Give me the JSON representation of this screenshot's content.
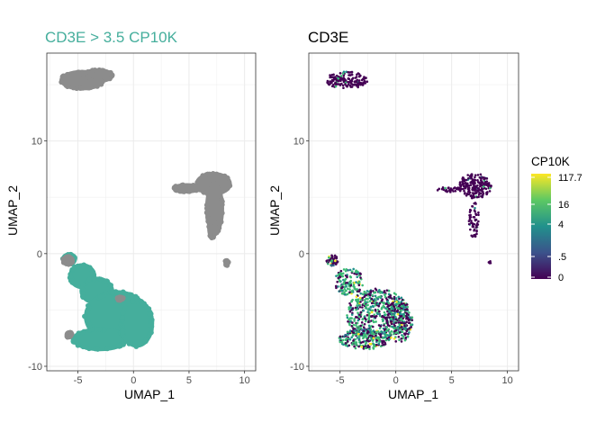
{
  "chart_data": [
    {
      "type": "scatter",
      "title": "CD3E > 3.5 CP10K",
      "title_color": "#45AE9C",
      "xlabel": "UMAP_1",
      "ylabel": "UMAP_2",
      "xlim": [
        -7.8,
        11.0
      ],
      "ylim": [
        -10.4,
        17.8
      ],
      "x_ticks": [
        -5,
        0,
        5,
        10
      ],
      "y_ticks": [
        -10,
        0,
        10
      ],
      "grid": true,
      "legend": "none",
      "series": [
        {
          "color": "#8C8C8C",
          "clusters": [
            {
              "shape": "ellipse",
              "cx": -4.6,
              "cy": 15.4,
              "rx": 1.9,
              "ry": 0.75
            },
            {
              "shape": "ellipse",
              "cx": -3.2,
              "cy": 15.8,
              "rx": 1.3,
              "ry": 0.5
            },
            {
              "shape": "ellipse",
              "cx": 7.2,
              "cy": 6.2,
              "rx": 1.5,
              "ry": 0.9
            },
            {
              "shape": "ellipse",
              "cx": 4.8,
              "cy": 5.8,
              "rx": 1.2,
              "ry": 0.3
            },
            {
              "shape": "ellipse",
              "cx": 7.3,
              "cy": 4.0,
              "rx": 0.7,
              "ry": 2.2
            },
            {
              "shape": "ellipse",
              "cx": 7.1,
              "cy": 2.2,
              "rx": 0.3,
              "ry": 0.8
            },
            {
              "shape": "ellipse",
              "cx": 8.4,
              "cy": -0.8,
              "rx": 0.15,
              "ry": 0.25
            }
          ]
        },
        {
          "color": "#45AE9C",
          "clusters": [
            {
              "shape": "ellipse",
              "cx": -5.8,
              "cy": -0.5,
              "rx": 0.55,
              "ry": 0.45
            },
            {
              "shape": "ellipse",
              "cx": -4.6,
              "cy": -2.0,
              "rx": 1.1,
              "ry": 1.0
            },
            {
              "shape": "ellipse",
              "cx": -3.3,
              "cy": -3.3,
              "rx": 1.4,
              "ry": 1.1
            },
            {
              "shape": "ellipse",
              "cx": -1.5,
              "cy": -5.6,
              "rx": 2.8,
              "ry": 2.2
            },
            {
              "shape": "ellipse",
              "cx": -3.0,
              "cy": -7.6,
              "rx": 2.4,
              "ry": 0.9
            },
            {
              "shape": "ellipse",
              "cx": 0.3,
              "cy": -6.2,
              "rx": 1.4,
              "ry": 2.0
            }
          ]
        },
        {
          "color": "#8C8C8C",
          "clusters": [
            {
              "shape": "ellipse",
              "cx": -5.9,
              "cy": -0.6,
              "rx": 0.45,
              "ry": 0.35
            },
            {
              "shape": "ellipse",
              "cx": -5.8,
              "cy": -7.2,
              "rx": 0.25,
              "ry": 0.25
            },
            {
              "shape": "ellipse",
              "cx": -1.2,
              "cy": -4.0,
              "rx": 0.3,
              "ry": 0.15
            }
          ]
        }
      ]
    },
    {
      "type": "scatter",
      "title": "CD3E",
      "title_color": "#000000",
      "xlabel": "UMAP_1",
      "ylabel": "UMAP_2",
      "xlim": [
        -7.8,
        11.0
      ],
      "ylim": [
        -10.4,
        17.8
      ],
      "x_ticks": [
        -5,
        0,
        5,
        10
      ],
      "y_ticks": [
        -10,
        0,
        10
      ],
      "grid": true,
      "legend": "right",
      "color_scale": {
        "title": "CP10K",
        "labels": [
          "117.7",
          "16",
          "4",
          ".5",
          "0"
        ],
        "colors": [
          "#FDE725",
          "#3BBB75",
          "#21918C",
          "#31688E",
          "#440154"
        ]
      },
      "clusters": [
        {
          "shape": "ellipse",
          "cx": -4.4,
          "cy": 15.4,
          "rx": 1.9,
          "ry": 0.75,
          "n": 160,
          "mix": [
            0.94,
            0.06,
            0.0
          ]
        },
        {
          "shape": "ellipse",
          "cx": 7.1,
          "cy": 6.0,
          "rx": 1.5,
          "ry": 1.1,
          "n": 200,
          "mix": [
            0.95,
            0.05,
            0.0
          ]
        },
        {
          "shape": "ellipse",
          "cx": 4.8,
          "cy": 5.7,
          "rx": 1.1,
          "ry": 0.25,
          "n": 30,
          "mix": [
            0.92,
            0.08,
            0.0
          ]
        },
        {
          "shape": "ellipse",
          "cx": 7.0,
          "cy": 3.0,
          "rx": 0.45,
          "ry": 1.6,
          "n": 60,
          "mix": [
            0.95,
            0.05,
            0.0
          ]
        },
        {
          "shape": "ellipse",
          "cx": 8.4,
          "cy": -0.8,
          "rx": 0.12,
          "ry": 0.15,
          "n": 6,
          "mix": [
            1.0,
            0.0,
            0.0
          ]
        },
        {
          "shape": "ellipse",
          "cx": -5.7,
          "cy": -0.6,
          "rx": 0.5,
          "ry": 0.5,
          "n": 50,
          "mix": [
            0.7,
            0.25,
            0.05
          ]
        },
        {
          "shape": "ellipse",
          "cx": -4.2,
          "cy": -2.5,
          "rx": 1.3,
          "ry": 1.2,
          "n": 140,
          "mix": [
            0.35,
            0.6,
            0.05
          ]
        },
        {
          "shape": "ellipse",
          "cx": -1.6,
          "cy": -5.4,
          "rx": 2.8,
          "ry": 2.3,
          "n": 520,
          "mix": [
            0.35,
            0.6,
            0.05
          ]
        },
        {
          "shape": "ellipse",
          "cx": -2.8,
          "cy": -7.6,
          "rx": 2.3,
          "ry": 0.9,
          "n": 220,
          "mix": [
            0.3,
            0.65,
            0.05
          ]
        },
        {
          "shape": "ellipse",
          "cx": 0.3,
          "cy": -6.0,
          "rx": 1.2,
          "ry": 1.9,
          "n": 200,
          "mix": [
            0.4,
            0.55,
            0.05
          ]
        }
      ]
    }
  ]
}
